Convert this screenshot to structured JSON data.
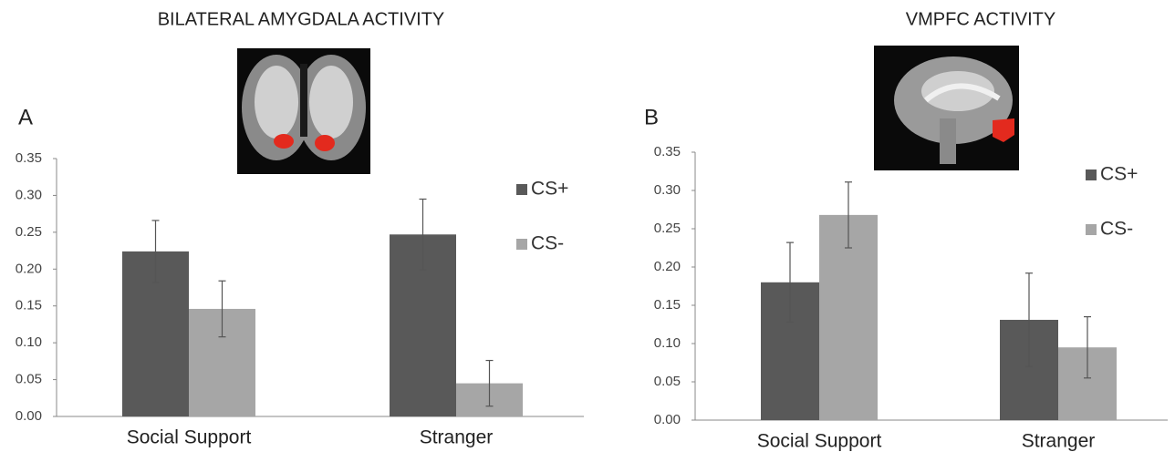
{
  "chart_data": [
    {
      "type": "bar",
      "title": "BILATERAL AMYGDALA ACTIVITY",
      "panel": "A",
      "categories": [
        "Social Support",
        "Stranger"
      ],
      "series": [
        {
          "name": "CS+",
          "color": "#595959",
          "values": [
            0.224,
            0.247
          ],
          "errors": [
            0.042,
            0.048
          ]
        },
        {
          "name": "CS-",
          "color": "#a6a6a6",
          "values": [
            0.146,
            0.045
          ],
          "errors": [
            0.038,
            0.031
          ]
        }
      ],
      "ylim": [
        0,
        0.35
      ],
      "yticks": [
        {
          "value": 0,
          "label": "0.00"
        },
        {
          "value": 0.05,
          "label": "0.05"
        },
        {
          "value": 0.1,
          "label": "0.10"
        },
        {
          "value": 0.15,
          "label": "0.15"
        },
        {
          "value": 0.2,
          "label": "0.20"
        },
        {
          "value": 0.25,
          "label": "0.25"
        },
        {
          "value": 0.3,
          "label": "0.30"
        },
        {
          "value": 0.35,
          "label": "0.35"
        }
      ]
    },
    {
      "type": "bar",
      "title": "VMPFC ACTIVITY",
      "panel": "B",
      "categories": [
        "Social Support",
        "Stranger"
      ],
      "series": [
        {
          "name": "CS+",
          "color": "#595959",
          "values": [
            0.18,
            0.131
          ],
          "errors": [
            0.052,
            0.061
          ]
        },
        {
          "name": "CS-",
          "color": "#a6a6a6",
          "values": [
            0.268,
            0.095
          ],
          "errors": [
            0.043,
            0.04
          ]
        }
      ],
      "ylim": [
        0,
        0.35
      ],
      "yticks": [
        {
          "value": 0,
          "label": "0.00"
        },
        {
          "value": 0.05,
          "label": "0.05"
        },
        {
          "value": 0.1,
          "label": "0.10"
        },
        {
          "value": 0.15,
          "label": "0.15"
        },
        {
          "value": 0.2,
          "label": "0.20"
        },
        {
          "value": 0.25,
          "label": "0.25"
        },
        {
          "value": 0.3,
          "label": "0.30"
        },
        {
          "value": 0.35,
          "label": "0.35"
        }
      ]
    }
  ]
}
